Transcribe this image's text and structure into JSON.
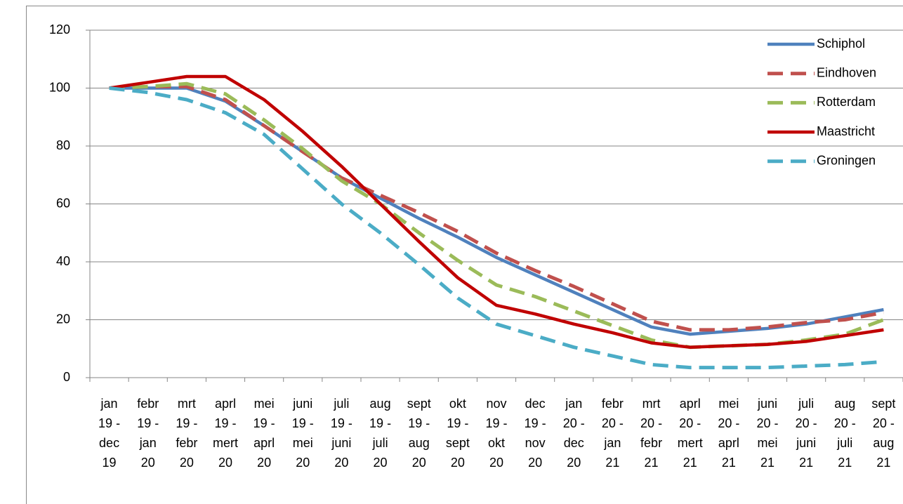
{
  "chart_data": {
    "type": "line",
    "categories": [
      [
        "jan",
        "19 -",
        "dec",
        "19"
      ],
      [
        "febr",
        "19 -",
        "jan",
        "20"
      ],
      [
        "mrt",
        "19 -",
        "febr",
        "20"
      ],
      [
        "aprl",
        "19 -",
        "mert",
        "20"
      ],
      [
        "mei",
        "19 -",
        "aprl",
        "20"
      ],
      [
        "juni",
        "19 -",
        "mei",
        "20"
      ],
      [
        "juli",
        "19 -",
        "juni",
        "20"
      ],
      [
        "aug",
        "19 -",
        "juli",
        "20"
      ],
      [
        "sept",
        "19 -",
        "aug",
        "20"
      ],
      [
        "okt",
        "19 -",
        "sept",
        "20"
      ],
      [
        "nov",
        "19 -",
        "okt",
        "20"
      ],
      [
        "dec",
        "19 -",
        "nov",
        "20"
      ],
      [
        "jan",
        "20 -",
        "dec",
        "20"
      ],
      [
        "febr",
        "20 -",
        "jan",
        "21"
      ],
      [
        "mrt",
        "20 -",
        "febr",
        "21"
      ],
      [
        "aprl",
        "20 -",
        "mert",
        "21"
      ],
      [
        "mei",
        "20 -",
        "aprl",
        "21"
      ],
      [
        "juni",
        "20 -",
        "mei",
        "21"
      ],
      [
        "juli",
        "20 -",
        "juni",
        "21"
      ],
      [
        "aug",
        "20 -",
        "juli",
        "21"
      ],
      [
        "sept",
        "20 -",
        "aug",
        "21"
      ]
    ],
    "series": [
      {
        "name": "Schiphol",
        "color": "#4f81bd",
        "dashed": false,
        "values": [
          100,
          100,
          100,
          95.5,
          87,
          78,
          69,
          62,
          55,
          48.5,
          41.5,
          35.5,
          29.5,
          23.5,
          17.5,
          15,
          16,
          17,
          18.5,
          21,
          23.5
        ]
      },
      {
        "name": "Eindhoven",
        "color": "#c0504d",
        "dashed": true,
        "values": [
          100,
          100.5,
          100.5,
          96,
          87,
          78,
          69,
          63,
          57,
          50.5,
          43,
          37,
          31.5,
          25.5,
          19.5,
          16.5,
          16.5,
          17.5,
          19,
          20,
          22.5
        ]
      },
      {
        "name": "Rotterdam",
        "color": "#9bbb59",
        "dashed": true,
        "values": [
          100,
          100.5,
          101.5,
          98,
          89,
          79,
          68,
          60,
          50,
          40.5,
          32,
          28,
          23,
          18,
          13,
          10.5,
          11,
          11.5,
          13,
          15,
          20
        ]
      },
      {
        "name": "Maastricht",
        "color": "#c00000",
        "dashed": false,
        "values": [
          100,
          102,
          104,
          104,
          96,
          85,
          73,
          60,
          47,
          34.5,
          25,
          22,
          18.5,
          15.5,
          12,
          10.5,
          11,
          11.5,
          12.5,
          14.5,
          16.5
        ]
      },
      {
        "name": "Groningen",
        "color": "#4bacc6",
        "dashed": true,
        "values": [
          100,
          98.5,
          96,
          91.5,
          84,
          72,
          60,
          50,
          39,
          27.5,
          18.5,
          14.5,
          10.5,
          7.5,
          4.5,
          3.5,
          3.5,
          3.5,
          4,
          4.5,
          5.5
        ]
      }
    ],
    "ylim": [
      0,
      120
    ],
    "yticks": [
      0,
      20,
      40,
      60,
      80,
      100,
      120
    ],
    "grid": true,
    "legend": "right"
  }
}
